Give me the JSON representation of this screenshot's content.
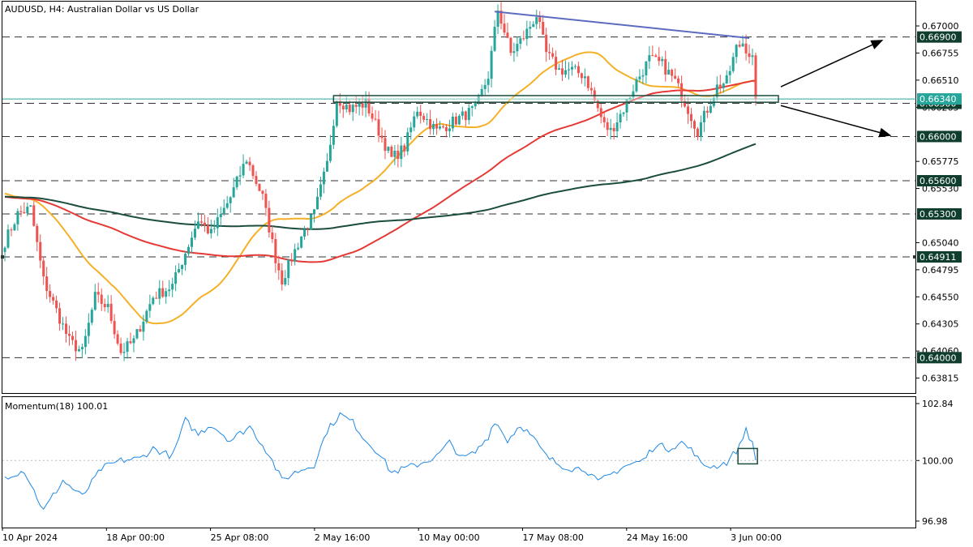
{
  "header": {
    "symbol": "AUDUSD",
    "timeframe": "H4",
    "description": "Australian Dollar vs US Dollar"
  },
  "indicator": {
    "name": "Momentum(18)",
    "value": "100.01"
  },
  "colors": {
    "bull": "#26a69a",
    "bear": "#ef5350",
    "ma_fast": "#f5b027",
    "ma_mid": "#e53935",
    "ma_slow": "#1b4d3e",
    "trendline": "#5c6bc0",
    "momentum": "#1e88e5",
    "tag_bg": "#0f3d2e",
    "annotation": "#1b4d3e"
  },
  "chart_data": {
    "type": "candlestick",
    "price_axis": {
      "ylim": [
        0.6368,
        0.6722
      ],
      "tick_labels": [
        "0.67000",
        "0.66755",
        "0.66510",
        "0.66265",
        "0.65775",
        "0.65530",
        "0.65040",
        "0.64795",
        "0.64550",
        "0.64305",
        "0.64060",
        "0.63815"
      ]
    },
    "level_tags": [
      "0.66900",
      "0.66300",
      "0.66000",
      "0.65600",
      "0.65300",
      "0.64911",
      "0.64000"
    ],
    "level_values": [
      0.669,
      0.663,
      0.66,
      0.656,
      0.653,
      0.64911,
      0.64
    ],
    "current_price_tag": "0.66340",
    "current_price": 0.6634,
    "x_axis_labels": [
      "10 Apr 2024",
      "18 Apr 00:00",
      "25 Apr 08:00",
      "2 May 16:00",
      "10 May 00:00",
      "17 May 08:00",
      "24 May 16:00",
      "3 Jun 00:00"
    ],
    "momentum_axis": {
      "ylim": [
        96.98,
        102.84
      ],
      "tick_labels": [
        "102.84",
        "100.00",
        "96.98"
      ]
    },
    "anchors": [
      [
        0,
        0.6505
      ],
      [
        4,
        0.653
      ],
      [
        8,
        0.6535
      ],
      [
        12,
        0.647
      ],
      [
        20,
        0.6415
      ],
      [
        24,
        0.6405
      ],
      [
        28,
        0.6455
      ],
      [
        32,
        0.6445
      ],
      [
        36,
        0.6405
      ],
      [
        40,
        0.6415
      ],
      [
        46,
        0.6455
      ],
      [
        52,
        0.6465
      ],
      [
        56,
        0.6495
      ],
      [
        60,
        0.6525
      ],
      [
        64,
        0.6512
      ],
      [
        70,
        0.6545
      ],
      [
        75,
        0.658
      ],
      [
        80,
        0.6545
      ],
      [
        84,
        0.649
      ],
      [
        86,
        0.647
      ],
      [
        92,
        0.651
      ],
      [
        96,
        0.653
      ],
      [
        100,
        0.6575
      ],
      [
        103,
        0.6635
      ],
      [
        107,
        0.6625
      ],
      [
        112,
        0.663
      ],
      [
        116,
        0.6605
      ],
      [
        120,
        0.658
      ],
      [
        124,
        0.659
      ],
      [
        128,
        0.6625
      ],
      [
        134,
        0.6605
      ],
      [
        140,
        0.6615
      ],
      [
        146,
        0.6625
      ],
      [
        150,
        0.6655
      ],
      [
        153,
        0.6715
      ],
      [
        157,
        0.6675
      ],
      [
        161,
        0.669
      ],
      [
        165,
        0.671
      ],
      [
        168,
        0.6675
      ],
      [
        172,
        0.666
      ],
      [
        176,
        0.666
      ],
      [
        180,
        0.6655
      ],
      [
        184,
        0.6625
      ],
      [
        186,
        0.661
      ],
      [
        188,
        0.6605
      ],
      [
        192,
        0.6625
      ],
      [
        196,
        0.665
      ],
      [
        200,
        0.667
      ],
      [
        204,
        0.6665
      ],
      [
        208,
        0.665
      ],
      [
        212,
        0.6625
      ],
      [
        215,
        0.6605
      ],
      [
        218,
        0.6625
      ],
      [
        221,
        0.6645
      ],
      [
        224,
        0.665
      ],
      [
        227,
        0.668
      ],
      [
        229,
        0.6685
      ],
      [
        232,
        0.667
      ],
      [
        233,
        0.6634
      ]
    ],
    "momentum_anchors": [
      [
        0,
        99.2
      ],
      [
        6,
        99.5
      ],
      [
        12,
        97.5
      ],
      [
        18,
        99.0
      ],
      [
        24,
        98.2
      ],
      [
        30,
        99.6
      ],
      [
        36,
        100.0
      ],
      [
        42,
        100.1
      ],
      [
        46,
        100.6
      ],
      [
        52,
        100.2
      ],
      [
        56,
        102.0
      ],
      [
        60,
        101.3
      ],
      [
        64,
        101.8
      ],
      [
        70,
        101.0
      ],
      [
        76,
        101.7
      ],
      [
        82,
        100.3
      ],
      [
        86,
        99.0
      ],
      [
        90,
        99.4
      ],
      [
        96,
        99.8
      ],
      [
        100,
        101.5
      ],
      [
        104,
        102.3
      ],
      [
        108,
        101.9
      ],
      [
        112,
        101.0
      ],
      [
        116,
        100.4
      ],
      [
        120,
        99.4
      ],
      [
        124,
        99.6
      ],
      [
        128,
        99.8
      ],
      [
        134,
        100.2
      ],
      [
        138,
        100.9
      ],
      [
        142,
        100.1
      ],
      [
        146,
        100.4
      ],
      [
        150,
        101.2
      ],
      [
        152,
        102.0
      ],
      [
        156,
        101.0
      ],
      [
        160,
        101.8
      ],
      [
        164,
        101.1
      ],
      [
        168,
        100.2
      ],
      [
        172,
        99.8
      ],
      [
        176,
        99.6
      ],
      [
        180,
        99.6
      ],
      [
        184,
        98.9
      ],
      [
        188,
        99.3
      ],
      [
        192,
        99.7
      ],
      [
        198,
        100.0
      ],
      [
        202,
        100.8
      ],
      [
        206,
        100.6
      ],
      [
        210,
        100.9
      ],
      [
        214,
        100.4
      ],
      [
        216,
        99.8
      ],
      [
        220,
        99.7
      ],
      [
        224,
        99.9
      ],
      [
        228,
        100.7
      ],
      [
        230,
        101.6
      ],
      [
        232,
        100.8
      ],
      [
        233,
        100.01
      ]
    ]
  }
}
